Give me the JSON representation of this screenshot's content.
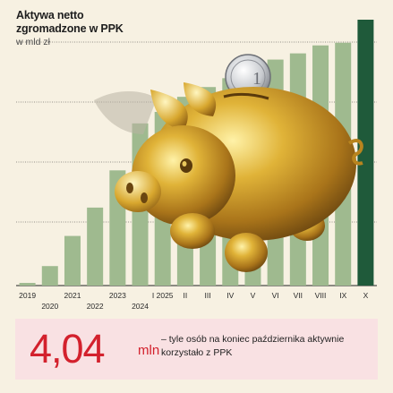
{
  "chart_data": {
    "type": "bar",
    "title": "Aktywa netto zgromadzone w PPK",
    "subtitle": "w mld zł",
    "xlabel": "",
    "ylabel": "",
    "ylim": [
      0,
      30
    ],
    "grid": true,
    "categories": [
      "2019",
      "2020",
      "2021",
      "2022",
      "2023",
      "2024",
      "I 2025",
      "II",
      "III",
      "IV",
      "V",
      "VI",
      "VII",
      "VIII",
      "IX",
      "X"
    ],
    "values": [
      0.3,
      2.2,
      5.6,
      8.8,
      13.0,
      18.3,
      19.6,
      21.3,
      22.4,
      23.4,
      24.6,
      25.5,
      26.2,
      27.1,
      27.4,
      30.0
    ],
    "colors": {
      "bars": "#9fba8f",
      "highlight": "#1f5a3a",
      "grid": "#333333"
    }
  },
  "info": {
    "number": "4,04",
    "unit": "mln",
    "text": "– tyle osób na koniec października aktywnie korzystało z PPK"
  },
  "illustration": {
    "icon": "golden-piggy-bank-with-coin-icon"
  }
}
